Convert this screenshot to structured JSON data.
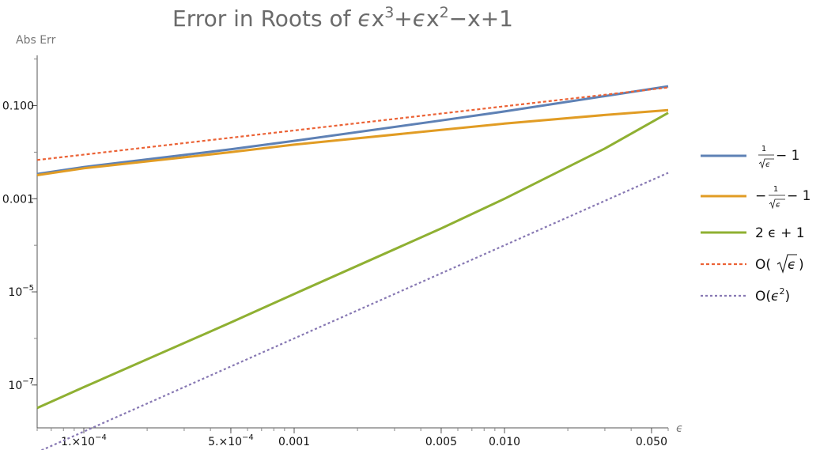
{
  "chart_data": {
    "type": "line",
    "title": {
      "prefix": "Error in Roots of ",
      "eps": "ϵ",
      "x": "x",
      "exp3": "3",
      "plus": "+",
      "exp2": "2",
      "tail": "−x+1"
    },
    "ylabel": "Abs Err",
    "xlabel": "ϵ",
    "x_scale": "log",
    "y_scale": "log",
    "xlim": [
      6e-05,
      0.06
    ],
    "ylim": [
      1.2e-08,
      1.2
    ],
    "grid": false,
    "legend_position": "right",
    "x_ticks": [
      {
        "value": 0.0001,
        "label": "1.×10−4",
        "mantissa": "1.×10",
        "exponent": "−4"
      },
      {
        "value": 0.0005,
        "label": "5.×10−4",
        "mantissa": "5.×10",
        "exponent": "−4"
      },
      {
        "value": 0.001,
        "label": "0.001"
      },
      {
        "value": 0.005,
        "label": "0.005"
      },
      {
        "value": 0.01,
        "label": "0.010"
      },
      {
        "value": 0.05,
        "label": "0.050"
      }
    ],
    "y_ticks": [
      {
        "value": 0.1,
        "label": "0.100"
      },
      {
        "value": 0.001,
        "label": "0.001"
      },
      {
        "value": 1e-05,
        "label": "10−5",
        "mantissa": "10",
        "exponent": "−5"
      },
      {
        "value": 1e-07,
        "label": "10−7",
        "mantissa": "10",
        "exponent": "−7"
      }
    ],
    "series": [
      {
        "key": "s1",
        "color": "#5e81b5",
        "dash": "none",
        "legend_num": "1",
        "legend_den": "ϵ",
        "legend_prefix": "",
        "legend_suffix": " − 1",
        "points": [
          [
            6e-05,
            0.0034
          ],
          [
            0.0001,
            0.0048
          ],
          [
            0.0005,
            0.0115
          ],
          [
            0.001,
            0.0175
          ],
          [
            0.005,
            0.048
          ],
          [
            0.01,
            0.075
          ],
          [
            0.03,
            0.16
          ],
          [
            0.06,
            0.26
          ]
        ]
      },
      {
        "key": "s2",
        "color": "#e19c24",
        "dash": "none",
        "legend_num": "1",
        "legend_den": "ϵ",
        "legend_prefix": "−",
        "legend_suffix": " − 1",
        "points": [
          [
            6e-05,
            0.0032
          ],
          [
            0.0001,
            0.0045
          ],
          [
            0.0005,
            0.01
          ],
          [
            0.001,
            0.0145
          ],
          [
            0.005,
            0.03
          ],
          [
            0.01,
            0.041
          ],
          [
            0.03,
            0.063
          ],
          [
            0.06,
            0.08
          ]
        ]
      },
      {
        "key": "s3",
        "color": "#8fb032",
        "dash": "none",
        "legend_text": "2 ϵ + 1",
        "points": [
          [
            6e-05,
            3.2e-08
          ],
          [
            0.0001,
            9e-08
          ],
          [
            0.0005,
            2.2e-06
          ],
          [
            0.001,
            9e-06
          ],
          [
            0.005,
            0.00023
          ],
          [
            0.01,
            0.001
          ],
          [
            0.03,
            0.012
          ],
          [
            0.06,
            0.07
          ]
        ]
      },
      {
        "key": "s4",
        "color": "#eb6235",
        "dash": "4,3",
        "legend_prefix": "O(",
        "legend_rad": "ϵ",
        "legend_suffix": ")",
        "points": [
          [
            6e-05,
            0.0068
          ],
          [
            0.06,
            0.245
          ]
        ]
      },
      {
        "key": "s5",
        "color": "#8778b3",
        "dash": "3,3",
        "legend_prefix": "O(",
        "legend_eps": "ϵ",
        "legend_exp": "2",
        "legend_suffix": ")",
        "points": [
          [
            6e-05,
            3.6e-09
          ],
          [
            0.06,
            0.0036
          ]
        ]
      }
    ]
  }
}
